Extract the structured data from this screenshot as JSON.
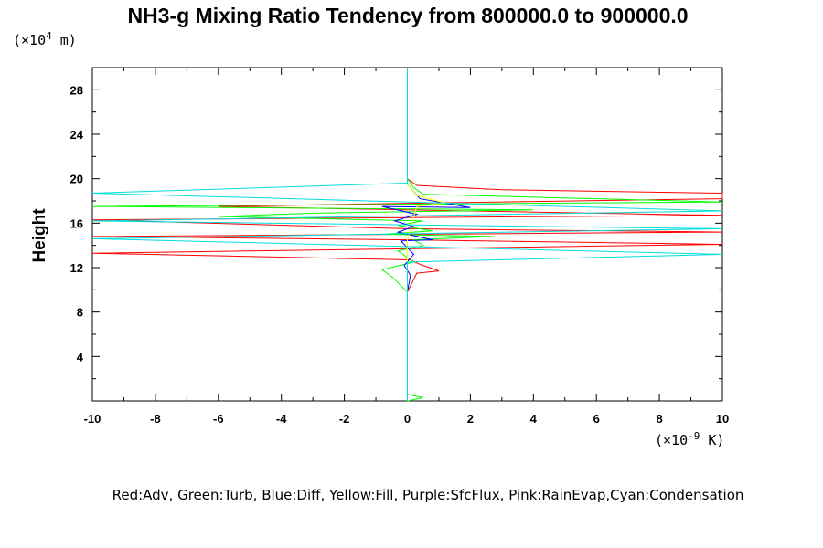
{
  "chart_data": {
    "type": "line",
    "title": "NH3-g Mixing Ratio Tendency from 800000.0 to 900000.0",
    "ylabel": "Height",
    "y_unit": {
      "prefix": "(×10",
      "exp": "4",
      "suffix": " m)"
    },
    "x_unit": {
      "prefix": "(×10",
      "exp": "-9",
      "suffix": " K)"
    },
    "xlim": [
      -10,
      10
    ],
    "ylim": [
      0,
      30
    ],
    "x_ticks": [
      "-10",
      "-8",
      "-6",
      "-4",
      "-2",
      "0",
      "2",
      "4",
      "6",
      "8",
      "10"
    ],
    "y_ticks": [
      "4",
      "8",
      "12",
      "16",
      "20",
      "24",
      "28"
    ],
    "legend_text": "Red:Adv, Green:Turb, Blue:Diff, Yellow:Fill, Purple:SfcFlux, Pink:RainEvap,Cyan:Condensation",
    "series": [
      {
        "name": "Adv",
        "color": "#ff0000",
        "points": [
          [
            0,
            0.5
          ],
          [
            0,
            5.5
          ],
          [
            0,
            9.8
          ],
          [
            0.3,
            11.5
          ],
          [
            1.0,
            11.7
          ],
          [
            0.4,
            12.3
          ],
          [
            0.1,
            12.7
          ],
          [
            -10,
            13.3
          ],
          [
            10,
            14.1
          ],
          [
            0,
            14.5
          ],
          [
            -10,
            14.8
          ],
          [
            10,
            15.2
          ],
          [
            0,
            15.5
          ],
          [
            -10,
            16.3
          ],
          [
            10,
            16.7
          ],
          [
            -6,
            17.5
          ],
          [
            -2,
            17.7
          ],
          [
            10,
            18.2
          ],
          [
            10,
            18.7
          ],
          [
            3,
            19.0
          ],
          [
            0.3,
            19.4
          ],
          [
            0,
            20
          ],
          [
            0,
            30
          ]
        ]
      },
      {
        "name": "Turb",
        "color": "#00ff00",
        "points": [
          [
            0,
            0
          ],
          [
            0.5,
            0.3
          ],
          [
            0,
            0.6
          ],
          [
            0,
            9.8
          ],
          [
            -0.5,
            11.2
          ],
          [
            -0.8,
            11.8
          ],
          [
            0.2,
            12.5
          ],
          [
            -0.3,
            13.5
          ],
          [
            0.5,
            14.0
          ],
          [
            0.2,
            14.5
          ],
          [
            2.7,
            14.8
          ],
          [
            -0.8,
            15.0
          ],
          [
            0.8,
            15.3
          ],
          [
            -0.3,
            15.8
          ],
          [
            0.5,
            16.2
          ],
          [
            -6,
            16.6
          ],
          [
            -3,
            16.9
          ],
          [
            4,
            17.2
          ],
          [
            -10,
            17.5
          ],
          [
            10,
            17.9
          ],
          [
            0.5,
            18.6
          ],
          [
            0.2,
            19.2
          ],
          [
            0,
            20
          ],
          [
            0,
            30
          ]
        ]
      },
      {
        "name": "Diff",
        "color": "#0000ff",
        "points": [
          [
            0,
            0.5
          ],
          [
            0,
            9.8
          ],
          [
            0.1,
            11.3
          ],
          [
            -0.1,
            12.2
          ],
          [
            0.2,
            13.2
          ],
          [
            -0.2,
            14.4
          ],
          [
            0.8,
            14.5
          ],
          [
            -0.3,
            15.2
          ],
          [
            0.2,
            15.7
          ],
          [
            -0.4,
            16.2
          ],
          [
            0.3,
            16.8
          ],
          [
            -0.8,
            17.5
          ],
          [
            2,
            17.4
          ],
          [
            0.4,
            18.2
          ],
          [
            0,
            19.5
          ],
          [
            0,
            30
          ]
        ]
      },
      {
        "name": "Fill",
        "color": "#ffff00",
        "points": [
          [
            0,
            0.5
          ],
          [
            0,
            14.5
          ],
          [
            0.3,
            17.5
          ],
          [
            1.2,
            17.8
          ],
          [
            0.3,
            18.5
          ],
          [
            0,
            19.5
          ],
          [
            0,
            30
          ]
        ]
      },
      {
        "name": "SfcFlux",
        "color": "#aa00ff",
        "points": [
          [
            0,
            0
          ],
          [
            0,
            0.6
          ]
        ]
      },
      {
        "name": "RainEvap",
        "color": "#ff66cc",
        "points": [
          [
            0,
            0
          ],
          [
            0,
            0.6
          ]
        ]
      },
      {
        "name": "Condensation",
        "color": "#00dddd",
        "points": [
          [
            0,
            0
          ],
          [
            0,
            10
          ],
          [
            0,
            12.5
          ],
          [
            10,
            13.2
          ],
          [
            -10,
            14.6
          ],
          [
            10,
            15.5
          ],
          [
            -10,
            16.2
          ],
          [
            10,
            17.1
          ],
          [
            -10,
            18.7
          ],
          [
            0,
            19.6
          ],
          [
            0,
            30
          ]
        ]
      }
    ]
  }
}
